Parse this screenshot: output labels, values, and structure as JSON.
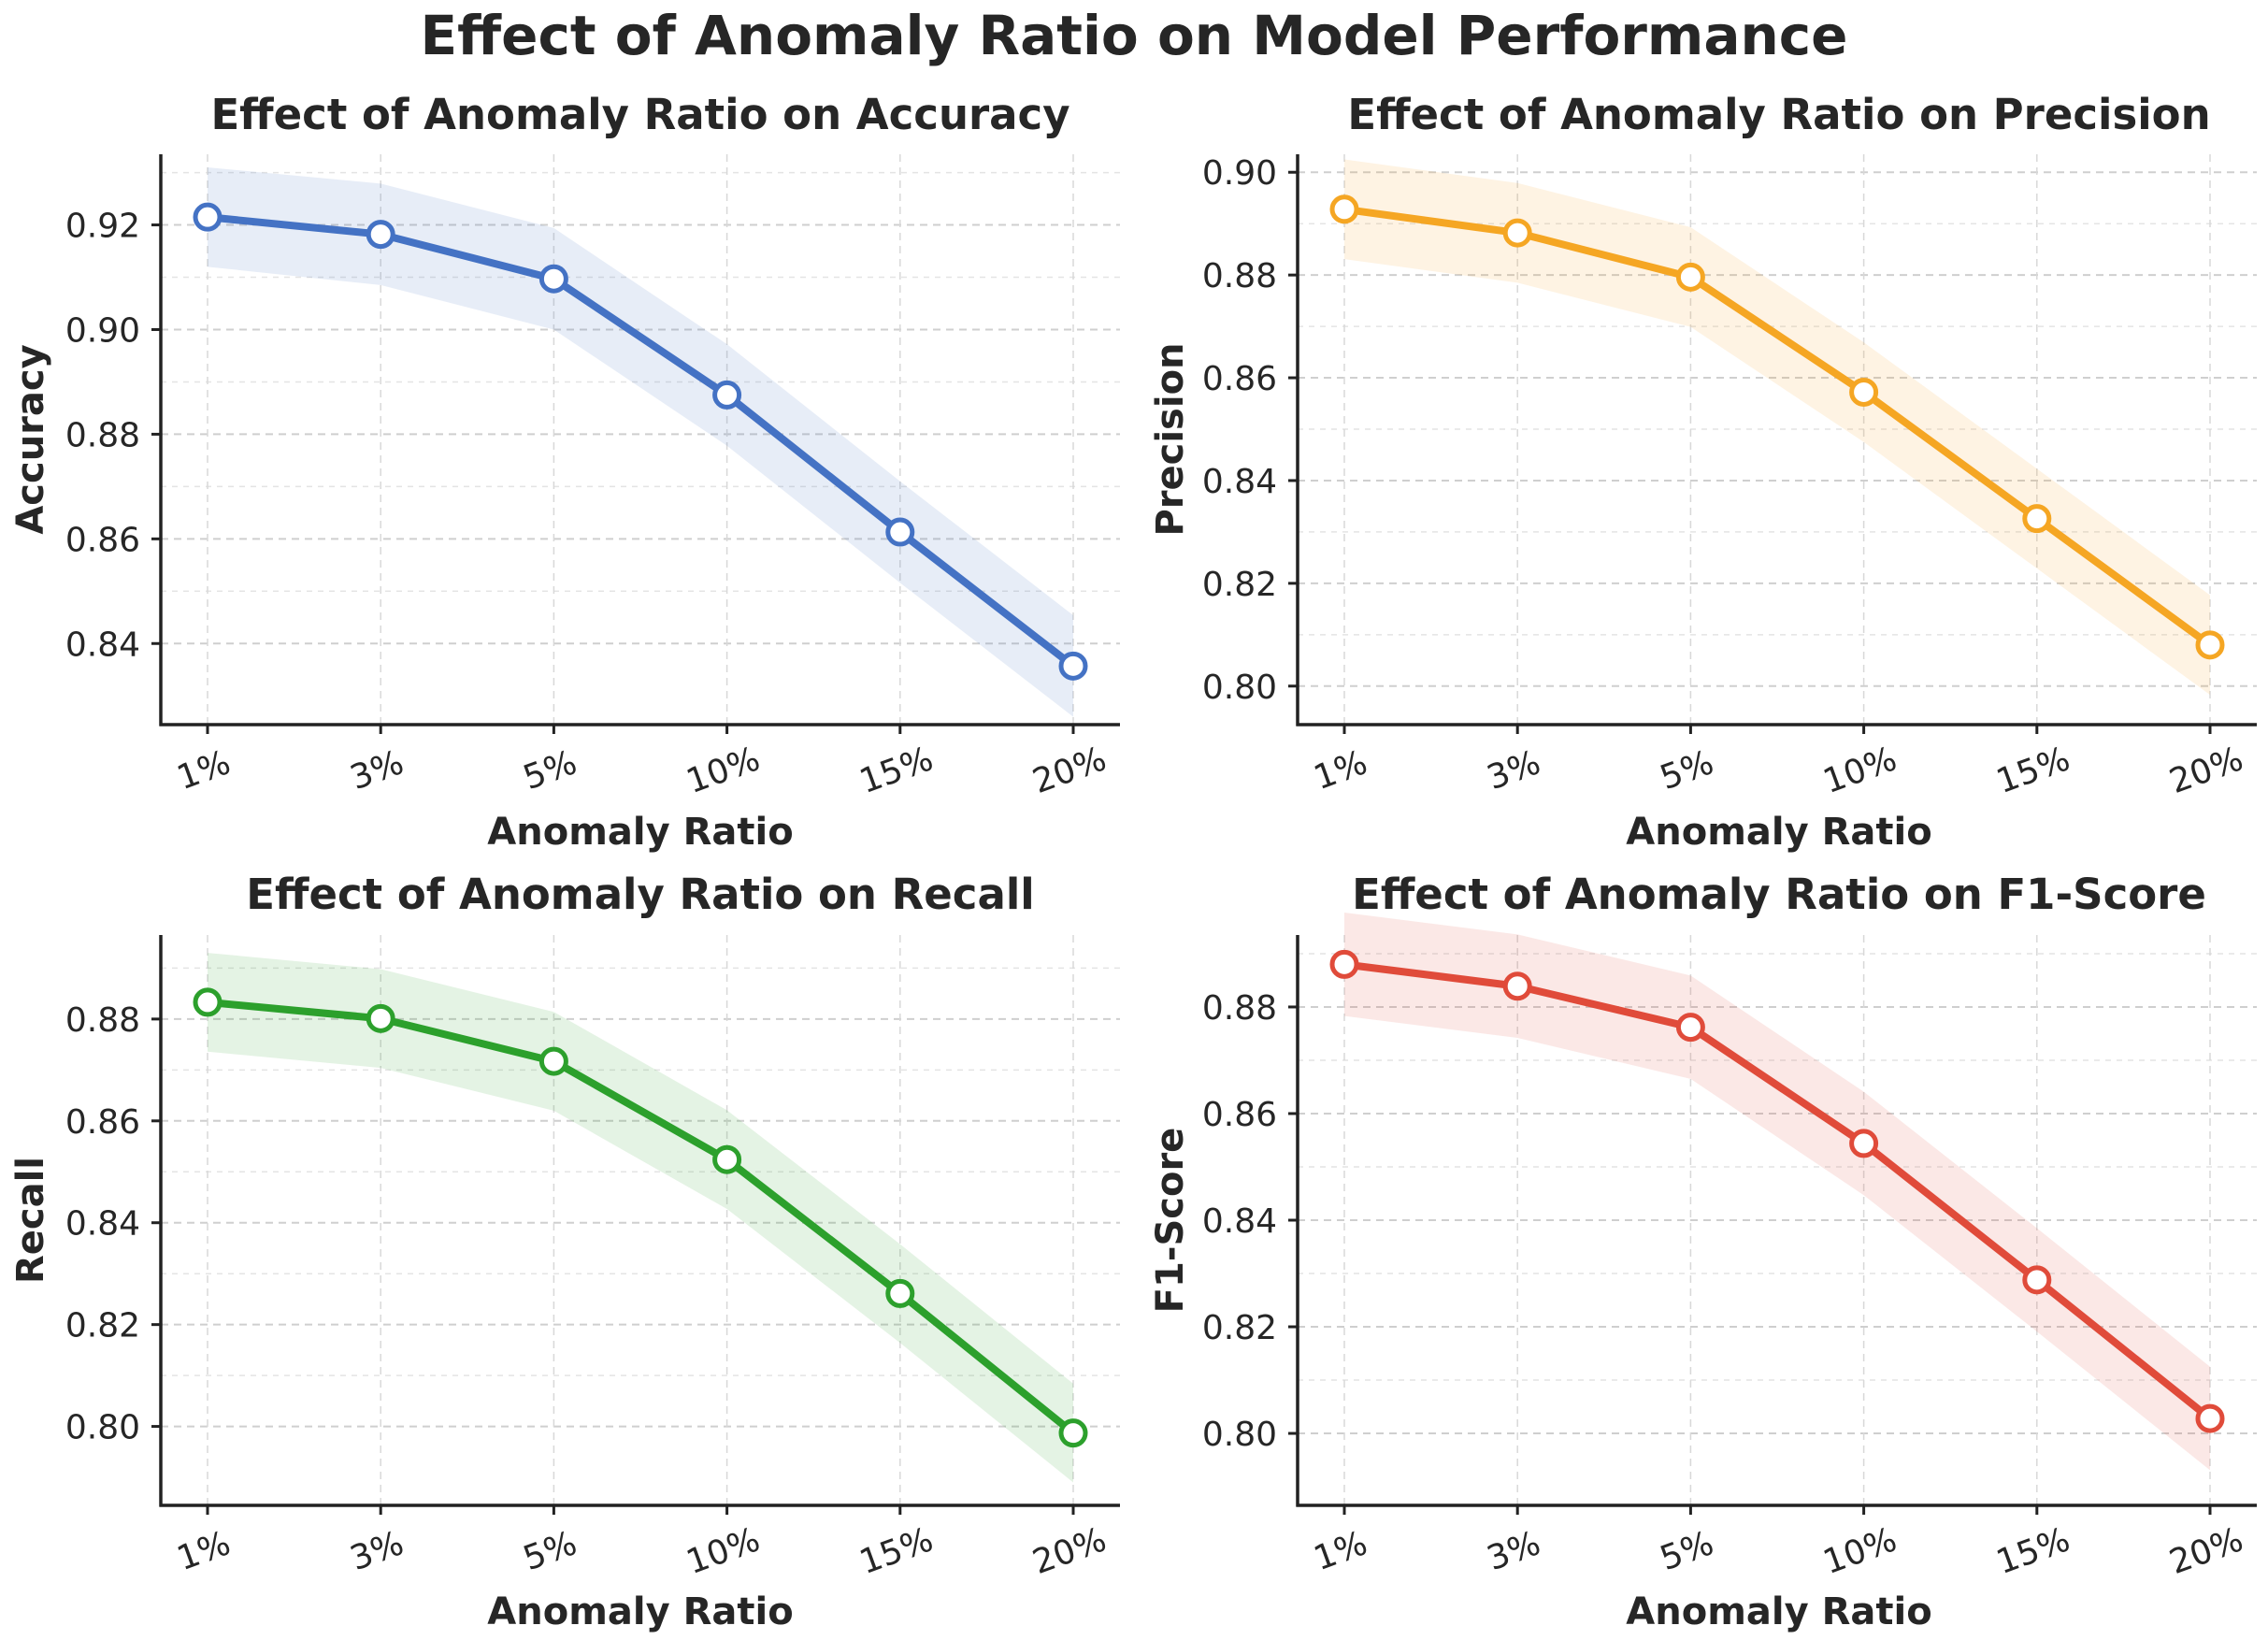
{
  "figure_title": "Effect of Anomaly Ratio on Model Performance",
  "chart_data": [
    {
      "type": "line",
      "title": "Effect of Anomaly Ratio on Accuracy",
      "xlabel": "Anomaly Ratio",
      "ylabel": "Accuracy",
      "categories": [
        "1%",
        "3%",
        "5%",
        "10%",
        "15%",
        "20%"
      ],
      "values": [
        0.9215,
        0.9182,
        0.9097,
        0.8875,
        0.8613,
        0.8357
      ],
      "band_lower": [
        0.912,
        0.9085,
        0.9,
        0.8778,
        0.8516,
        0.826
      ],
      "band_upper": [
        0.931,
        0.9279,
        0.9194,
        0.8972,
        0.871,
        0.8454
      ],
      "yticks": [
        "0.84",
        "0.86",
        "0.88",
        "0.90",
        "0.92"
      ],
      "ylim": [
        0.8245,
        0.9335
      ],
      "grid": true,
      "color": "#4472c4"
    },
    {
      "type": "line",
      "title": "Effect of Anomaly Ratio on Precision",
      "xlabel": "Anomaly Ratio",
      "ylabel": "Precision",
      "categories": [
        "1%",
        "3%",
        "5%",
        "10%",
        "15%",
        "20%"
      ],
      "values": [
        0.8928,
        0.8882,
        0.8796,
        0.8572,
        0.8326,
        0.808
      ],
      "band_lower": [
        0.8831,
        0.8785,
        0.8699,
        0.8475,
        0.8229,
        0.7983
      ],
      "band_upper": [
        0.9025,
        0.8979,
        0.8893,
        0.8669,
        0.8423,
        0.8177
      ],
      "yticks": [
        "0.80",
        "0.82",
        "0.84",
        "0.86",
        "0.88",
        "0.90"
      ],
      "ylim": [
        0.7925,
        0.9035
      ],
      "grid": true,
      "color": "#f5a623"
    },
    {
      "type": "line",
      "title": "Effect of Anomaly Ratio on Recall",
      "xlabel": "Anomaly Ratio",
      "ylabel": "Recall",
      "categories": [
        "1%",
        "3%",
        "5%",
        "10%",
        "15%",
        "20%"
      ],
      "values": [
        0.8833,
        0.8801,
        0.8717,
        0.8524,
        0.8261,
        0.7987
      ],
      "band_lower": [
        0.8736,
        0.8704,
        0.862,
        0.8427,
        0.8164,
        0.789
      ],
      "band_upper": [
        0.893,
        0.8898,
        0.8814,
        0.8621,
        0.8358,
        0.8084
      ],
      "yticks": [
        "0.80",
        "0.82",
        "0.84",
        "0.86",
        "0.88"
      ],
      "ylim": [
        0.7845,
        0.8965
      ],
      "grid": true,
      "color": "#2ca02c"
    },
    {
      "type": "line",
      "title": "Effect of Anomaly Ratio on F1-Score",
      "xlabel": "Anomaly Ratio",
      "ylabel": "F1-Score",
      "categories": [
        "1%",
        "3%",
        "5%",
        "10%",
        "15%",
        "20%"
      ],
      "values": [
        0.888,
        0.8839,
        0.8762,
        0.8544,
        0.8288,
        0.8028
      ],
      "band_lower": [
        0.8783,
        0.8742,
        0.8665,
        0.8447,
        0.8191,
        0.7931
      ],
      "band_upper": [
        0.8977,
        0.8936,
        0.8859,
        0.8641,
        0.8385,
        0.8125
      ],
      "yticks": [
        "0.80",
        "0.82",
        "0.84",
        "0.86",
        "0.88"
      ],
      "ylim": [
        0.7865,
        0.8935
      ],
      "grid": true,
      "color": "#e04b3a"
    }
  ]
}
